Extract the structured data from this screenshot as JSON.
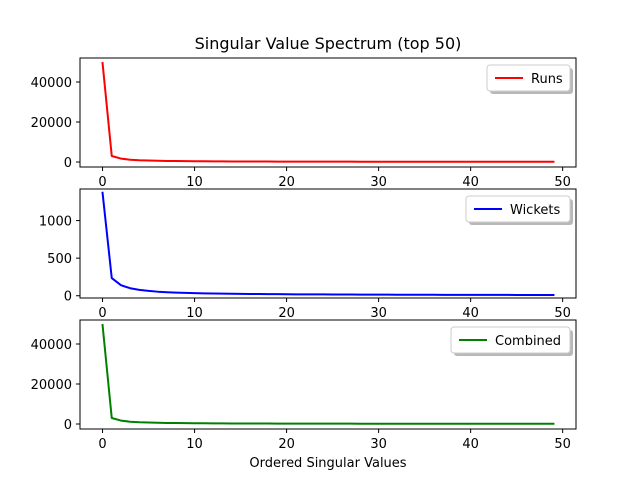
{
  "chart_data": {
    "type": "line",
    "title": "Singular Value Spectrum (top 50)",
    "xlabel": "Ordered Singular Values",
    "shared_x": {
      "xlim": [
        -2.45,
        51.45
      ],
      "xticks": [
        0,
        10,
        20,
        30,
        40,
        50
      ],
      "xtick_labels": [
        "0",
        "10",
        "20",
        "30",
        "40",
        "50"
      ]
    },
    "panels": [
      {
        "name": "runs",
        "ylabel": "",
        "ylim": [
          -2500,
          52000
        ],
        "yticks": [
          0,
          20000,
          40000
        ],
        "ytick_labels": [
          "0",
          "20000",
          "40000"
        ],
        "legend_position": "upper right",
        "series": [
          {
            "name": "Runs",
            "color": "#ff0000",
            "x": [
              0,
              1,
              2,
              3,
              4,
              5,
              6,
              7,
              8,
              9,
              10,
              11,
              12,
              13,
              14,
              15,
              16,
              17,
              18,
              19,
              20,
              21,
              22,
              23,
              24,
              25,
              26,
              27,
              28,
              29,
              30,
              31,
              32,
              33,
              34,
              35,
              36,
              37,
              38,
              39,
              40,
              41,
              42,
              43,
              44,
              45,
              46,
              47,
              48,
              49
            ],
            "values": [
              49500,
              3000,
              1700,
              1150,
              880,
              720,
              610,
              530,
              470,
              420,
              380,
              350,
              320,
              300,
              280,
              265,
              250,
              238,
              226,
              216,
              207,
              199,
              192,
              185,
              178,
              172,
              167,
              162,
              157,
              153,
              149,
              145,
              141,
              138,
              135,
              132,
              129,
              126,
              124,
              121,
              119,
              117,
              115,
              113,
              111,
              109,
              107,
              105,
              104,
              102
            ]
          }
        ]
      },
      {
        "name": "wickets",
        "ylabel": "",
        "ylim": [
          -30,
          1420
        ],
        "yticks": [
          0,
          500,
          1000
        ],
        "ytick_labels": [
          "0",
          "500",
          "1000"
        ],
        "legend_position": "upper right",
        "series": [
          {
            "name": "Wickets",
            "color": "#0000ff",
            "x": [
              0,
              1,
              2,
              3,
              4,
              5,
              6,
              7,
              8,
              9,
              10,
              11,
              12,
              13,
              14,
              15,
              16,
              17,
              18,
              19,
              20,
              21,
              22,
              23,
              24,
              25,
              26,
              27,
              28,
              29,
              30,
              31,
              32,
              33,
              34,
              35,
              36,
              37,
              38,
              39,
              40,
              41,
              42,
              43,
              44,
              45,
              46,
              47,
              48,
              49
            ],
            "values": [
              1370,
              235,
              140,
              100,
              78,
              64,
              54,
              47,
              42,
              38,
              35,
              32,
              30,
              28,
              26,
              25,
              24,
              23,
              22,
              21,
              20,
              19,
              18.5,
              18,
              17.5,
              17,
              16.5,
              16,
              15.5,
              15,
              14.6,
              14.2,
              13.8,
              13.5,
              13.2,
              12.9,
              12.6,
              12.3,
              12,
              11.8,
              11.6,
              11.4,
              11.2,
              11,
              10.8,
              10.6,
              10.4,
              10.2,
              10.1,
              10
            ]
          }
        ]
      },
      {
        "name": "combined",
        "ylabel": "",
        "ylim": [
          -2500,
          52000
        ],
        "yticks": [
          0,
          20000,
          40000
        ],
        "ytick_labels": [
          "0",
          "20000",
          "40000"
        ],
        "legend_position": "upper right",
        "series": [
          {
            "name": "Combined",
            "color": "#008000",
            "x": [
              0,
              1,
              2,
              3,
              4,
              5,
              6,
              7,
              8,
              9,
              10,
              11,
              12,
              13,
              14,
              15,
              16,
              17,
              18,
              19,
              20,
              21,
              22,
              23,
              24,
              25,
              26,
              27,
              28,
              29,
              30,
              31,
              32,
              33,
              34,
              35,
              36,
              37,
              38,
              39,
              40,
              41,
              42,
              43,
              44,
              45,
              46,
              47,
              48,
              49
            ],
            "values": [
              49500,
              3000,
              1700,
              1150,
              880,
              720,
              610,
              530,
              470,
              420,
              380,
              350,
              320,
              300,
              280,
              265,
              250,
              238,
              226,
              216,
              207,
              199,
              192,
              185,
              178,
              172,
              167,
              162,
              157,
              153,
              149,
              145,
              141,
              138,
              135,
              132,
              129,
              126,
              124,
              121,
              119,
              117,
              115,
              113,
              111,
              109,
              107,
              105,
              104,
              102
            ]
          }
        ]
      }
    ]
  }
}
